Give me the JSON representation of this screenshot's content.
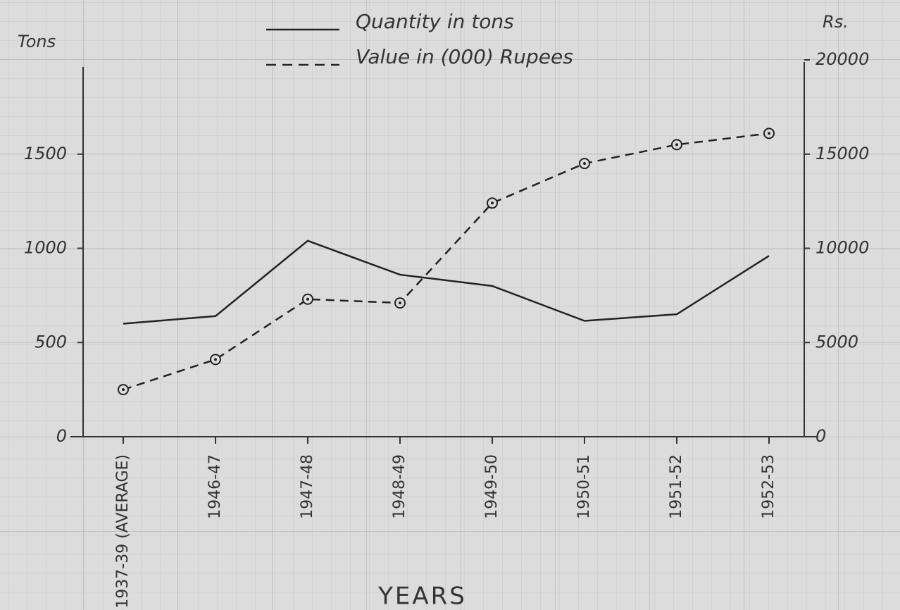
{
  "chart_data": {
    "type": "line",
    "categories": [
      "1937-39 (AVERAGE)",
      "1946-47",
      "1947-48",
      "1948-49",
      "1949-50",
      "1950-51",
      "1951-52",
      "1952-53"
    ],
    "series": [
      {
        "name": "Quantity in tons",
        "color": "#222222",
        "dash": "solid",
        "axis": "y",
        "values": [
          600,
          640,
          1040,
          860,
          800,
          615,
          650,
          960
        ]
      },
      {
        "name": "Value in (000) Rupees",
        "color": "#222222",
        "dash": "dashed",
        "axis": "y2",
        "marker": "circle",
        "values": [
          2500,
          4100,
          7300,
          7100,
          12400,
          14500,
          15500,
          16100
        ]
      }
    ],
    "ylabel": "Tons",
    "y2label": "Rs.",
    "xlabel": "YEARS",
    "ylim": [
      0,
      2000
    ],
    "yticks": [
      0,
      500,
      1000,
      1500
    ],
    "y2lim": [
      0,
      20000
    ],
    "y2ticks": [
      0,
      5000,
      10000,
      15000,
      20000
    ],
    "grid": false
  }
}
